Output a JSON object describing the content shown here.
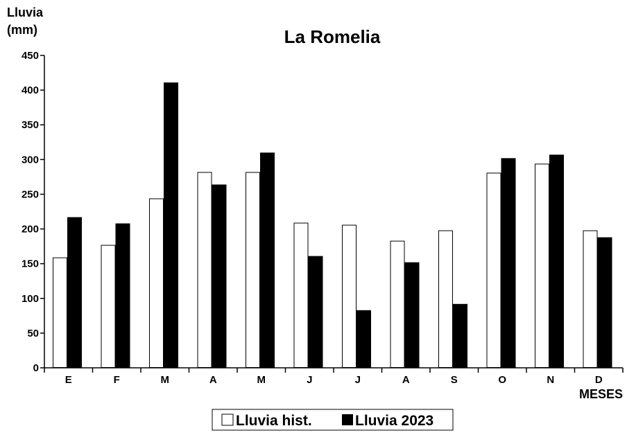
{
  "chart_data": {
    "type": "bar",
    "title": "La Romelia",
    "ylabel_line1": "Lluvia",
    "ylabel_line2": "(mm)",
    "xlabel": "MESES",
    "categories": [
      "E",
      "F",
      "M",
      "A",
      "M",
      "J",
      "J",
      "A",
      "S",
      "O",
      "N",
      "D"
    ],
    "ylim": [
      0,
      450
    ],
    "yticks": [
      "0",
      "50",
      "100",
      "150",
      "200",
      "250",
      "300",
      "350",
      "400",
      "450"
    ],
    "series": [
      {
        "name": "Lluvia hist.",
        "color": "#ffffff",
        "values": [
          159,
          177,
          244,
          282,
          282,
          209,
          206,
          183,
          198,
          281,
          294,
          198
        ]
      },
      {
        "name": "Lluvia 2023",
        "color": "#000000",
        "values": [
          217,
          208,
          411,
          264,
          310,
          161,
          83,
          152,
          92,
          302,
          307,
          188
        ]
      }
    ],
    "legend_position": "bottom-center",
    "grid": false
  }
}
